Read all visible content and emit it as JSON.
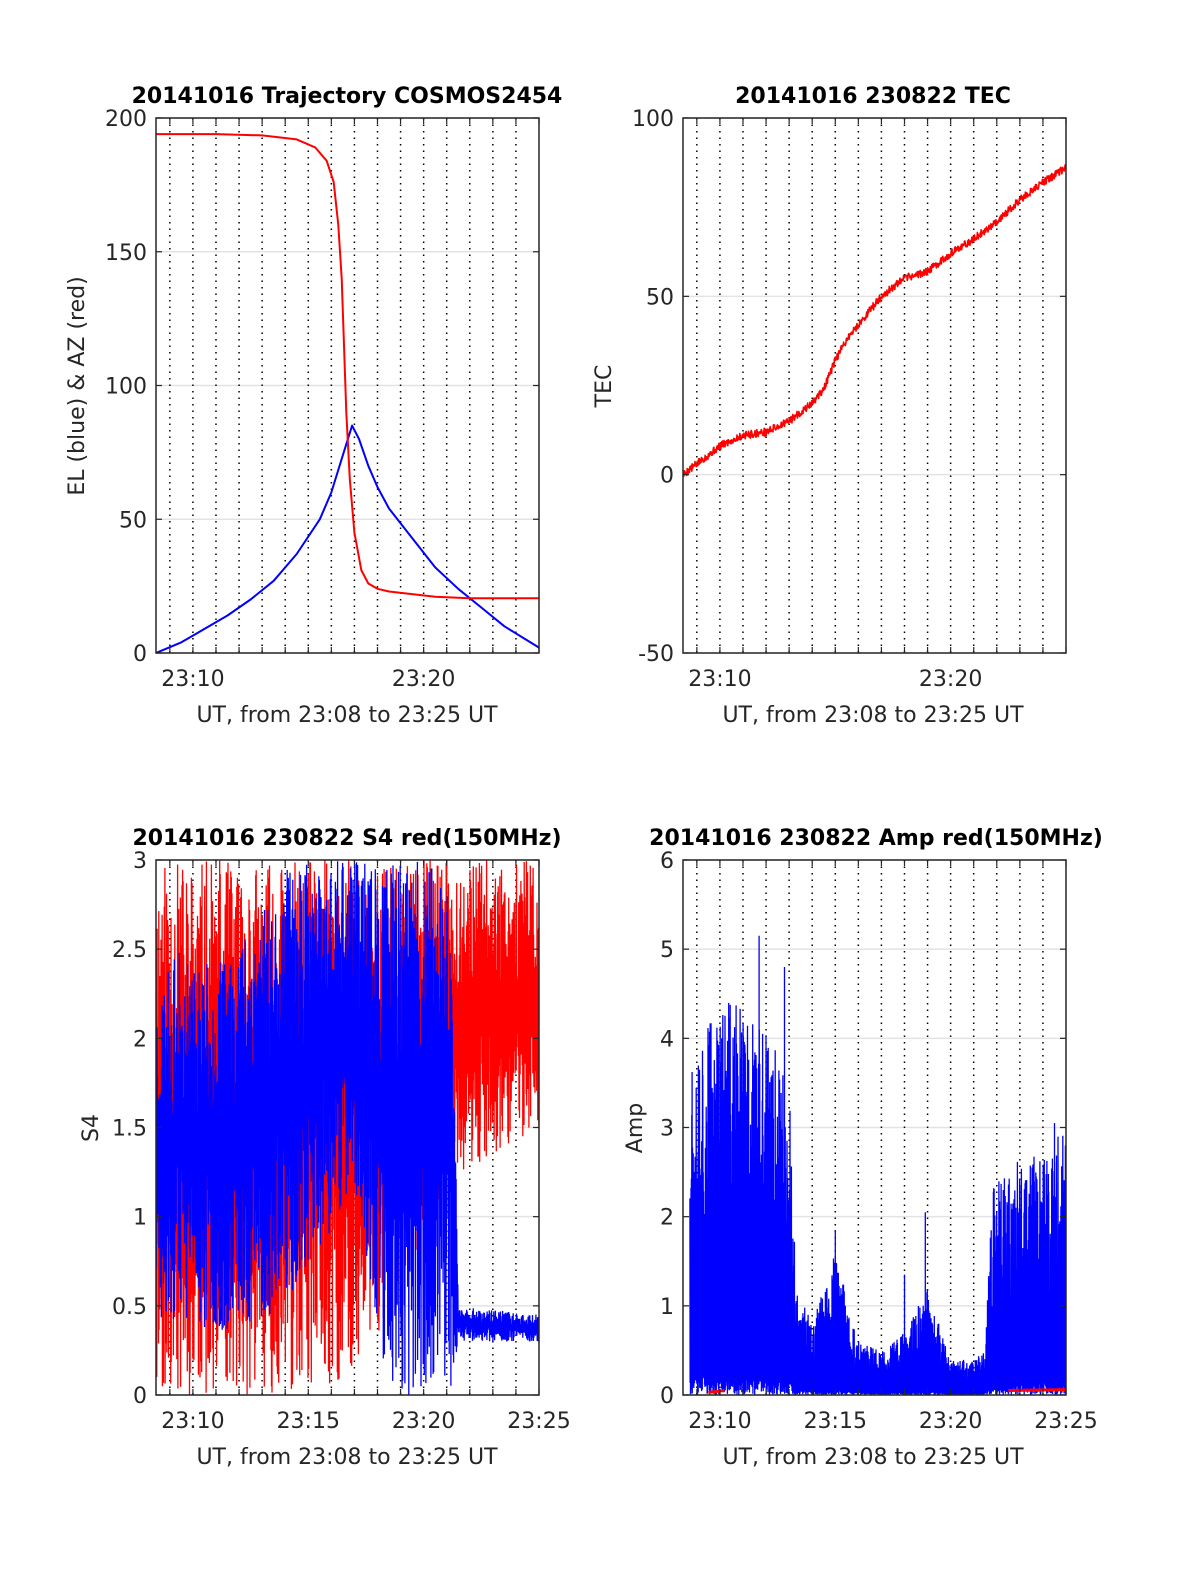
{
  "colors": {
    "el_blue": "#0000ff",
    "az_red": "#ff0000",
    "tec_red": "#ff0000",
    "grid": "#e3e3e3",
    "axis": "#262626"
  },
  "chart_data": [
    {
      "type": "line",
      "title": "20141016 Trajectory COSMOS2454",
      "xlabel": "UT, from 23:08 to 23:25 UT",
      "ylabel": "EL (blue) & AZ (red)",
      "xlim_minutes": [
        8.4,
        25
      ],
      "ylim": [
        0,
        200
      ],
      "xticks": [
        {
          "v": 10,
          "label": "23:10"
        },
        {
          "v": 20,
          "label": "23:20"
        }
      ],
      "yticks": [
        {
          "v": 0,
          "label": "0"
        },
        {
          "v": 50,
          "label": "50"
        },
        {
          "v": 100,
          "label": "100"
        },
        {
          "v": 150,
          "label": "150"
        },
        {
          "v": 200,
          "label": "200"
        }
      ],
      "vgrid_dotted_minutes": [
        9,
        10,
        11,
        12,
        13,
        14,
        15,
        16,
        17,
        18,
        19,
        20,
        21,
        22,
        23,
        24,
        25
      ],
      "series": [
        {
          "color": "#0000ff",
          "x": [
            8.4,
            9.5,
            10.5,
            11.5,
            12.5,
            13.5,
            14.5,
            15.5,
            16.0,
            16.5,
            16.9,
            17.2,
            17.6,
            18.0,
            18.5,
            19.5,
            20.5,
            21.5,
            22.5,
            23.5,
            25.0
          ],
          "y": [
            0,
            4,
            9,
            14,
            20,
            27,
            37,
            50,
            60,
            74,
            85,
            80,
            70,
            62,
            54,
            43,
            32,
            24,
            17,
            10,
            2
          ]
        },
        {
          "color": "#ff0000",
          "x": [
            8.4,
            11,
            13,
            14.5,
            15.3,
            15.8,
            16.1,
            16.3,
            16.45,
            16.55,
            16.65,
            16.8,
            17.0,
            17.3,
            17.6,
            18.0,
            18.5,
            19.5,
            20.5,
            22,
            25
          ],
          "y": [
            194,
            194,
            193.5,
            192,
            189,
            184,
            176,
            160,
            140,
            115,
            90,
            65,
            45,
            31,
            26,
            24,
            23,
            22,
            21,
            20.5,
            20.5
          ]
        }
      ]
    },
    {
      "type": "line",
      "title": "20141016 230822 TEC",
      "xlabel": "UT, from 23:08 to 23:25 UT",
      "ylabel": "TEC",
      "xlim_minutes": [
        8.4,
        25
      ],
      "ylim": [
        -50,
        100
      ],
      "xticks": [
        {
          "v": 10,
          "label": "23:10"
        },
        {
          "v": 20,
          "label": "23:20"
        }
      ],
      "yticks": [
        {
          "v": -50,
          "label": "-50"
        },
        {
          "v": 0,
          "label": "0"
        },
        {
          "v": 50,
          "label": "50"
        },
        {
          "v": 100,
          "label": "100"
        }
      ],
      "vgrid_dotted_minutes": [
        9,
        10,
        11,
        12,
        13,
        14,
        15,
        16,
        17,
        18,
        19,
        20,
        21,
        22,
        23,
        24,
        25
      ],
      "series": [
        {
          "color": "#ff0000",
          "x": [
            8.4,
            9.0,
            10.0,
            11.0,
            12.0,
            13.0,
            14.0,
            14.5,
            15.0,
            15.5,
            16.0,
            17.0,
            18.0,
            19.0,
            20.0,
            21.0,
            22.0,
            23.0,
            24.0,
            25.0
          ],
          "y": [
            0,
            3,
            8,
            11,
            12,
            15,
            20,
            24,
            32,
            38,
            42,
            50,
            55,
            57,
            62,
            66,
            71,
            77,
            82,
            86
          ]
        }
      ]
    },
    {
      "type": "line",
      "title": "20141016 230822 S4 red(150MHz)",
      "xlabel": "UT, from 23:08 to 23:25 UT",
      "ylabel": "S4",
      "xlim_minutes": [
        8.4,
        25
      ],
      "ylim": [
        0,
        3
      ],
      "xticks": [
        {
          "v": 10,
          "label": "23:10"
        },
        {
          "v": 15,
          "label": "23:15"
        },
        {
          "v": 20,
          "label": "23:20"
        },
        {
          "v": 25,
          "label": "23:25"
        }
      ],
      "yticks": [
        {
          "v": 0,
          "label": "0"
        },
        {
          "v": 0.5,
          "label": "0.5"
        },
        {
          "v": 1,
          "label": "1"
        },
        {
          "v": 1.5,
          "label": "1.5"
        },
        {
          "v": 2,
          "label": "2"
        },
        {
          "v": 2.5,
          "label": "2.5"
        },
        {
          "v": 3,
          "label": "3"
        }
      ],
      "vgrid_dotted_minutes": [
        9,
        10,
        11,
        12,
        13,
        14,
        15,
        16,
        17,
        18,
        19,
        20,
        21,
        22,
        23,
        24,
        25
      ],
      "series": [
        {
          "color": "#ff0000",
          "noise": {
            "from": 8.4,
            "to": 25,
            "low": 0,
            "high": 3,
            "seed": 11
          },
          "envelope_x": [
            8.4,
            13,
            17,
            21,
            25
          ],
          "envelope_low": [
            0,
            0,
            0,
            1.2,
            1.5
          ],
          "envelope_high": [
            3,
            3,
            3,
            3,
            3
          ]
        },
        {
          "color": "#0000ff",
          "noise": {
            "from": 8.4,
            "to": 25,
            "seed": 23
          },
          "envelope_x": [
            8.4,
            9.5,
            11,
            13,
            14.5,
            15.5,
            17,
            18.5,
            20,
            21.2,
            21.5,
            25
          ],
          "envelope_low": [
            0.4,
            0.4,
            0.35,
            0.4,
            0.6,
            0.8,
            1.2,
            0.0,
            0.0,
            0.0,
            0.3,
            0.3
          ],
          "envelope_high": [
            2.3,
            2.5,
            2.4,
            2.8,
            3.0,
            3.0,
            3.0,
            3.0,
            3.0,
            3.0,
            0.5,
            0.45
          ]
        }
      ]
    },
    {
      "type": "line",
      "title": "20141016 230822 Amp red(150MHz)",
      "xlabel": "UT, from 23:08 to 23:25 UT",
      "ylabel": "Amp",
      "xlim_minutes": [
        8.4,
        25
      ],
      "ylim": [
        0,
        6
      ],
      "xticks": [
        {
          "v": 10,
          "label": "23:10"
        },
        {
          "v": 15,
          "label": "23:15"
        },
        {
          "v": 20,
          "label": "23:20"
        },
        {
          "v": 25,
          "label": "23:25"
        }
      ],
      "yticks": [
        {
          "v": 0,
          "label": "0"
        },
        {
          "v": 1,
          "label": "1"
        },
        {
          "v": 2,
          "label": "2"
        },
        {
          "v": 3,
          "label": "3"
        },
        {
          "v": 4,
          "label": "4"
        },
        {
          "v": 5,
          "label": "5"
        },
        {
          "v": 6,
          "label": "6"
        }
      ],
      "vgrid_dotted_minutes": [
        9,
        10,
        11,
        12,
        13,
        14,
        15,
        16,
        17,
        18,
        19,
        20,
        21,
        22,
        23,
        24,
        25
      ],
      "series": [
        {
          "color": "#0000ff",
          "noise": {
            "from": 8.7,
            "to": 25,
            "seed": 37
          },
          "envelope_x": [
            8.7,
            9.5,
            10.5,
            11.5,
            12.5,
            13.0,
            13.3,
            14.0,
            15.0,
            16.0,
            17.0,
            18.0,
            19.0,
            20.0,
            21.0,
            21.5,
            21.8,
            23.0,
            25.0
          ],
          "envelope_high": [
            4.3,
            4.3,
            4.5,
            4.2,
            4.0,
            3.5,
            1.2,
            0.8,
            1.6,
            0.6,
            0.5,
            0.7,
            1.2,
            0.4,
            0.4,
            0.5,
            2.3,
            2.7,
            3.0
          ],
          "spikes": [
            {
              "x": 11.7,
              "y": 5.15
            },
            {
              "x": 12.8,
              "y": 4.8
            },
            {
              "x": 15.0,
              "y": 1.85
            },
            {
              "x": 18.0,
              "y": 1.35
            },
            {
              "x": 18.9,
              "y": 2.05
            },
            {
              "x": 24.5,
              "y": 3.05
            }
          ]
        },
        {
          "color": "#ff0000",
          "segments": [
            {
              "x": [
                9.5,
                10.2
              ],
              "y": [
                0.03,
                0.05
              ]
            },
            {
              "x": [
                22.5,
                25.0
              ],
              "y": [
                0.05,
                0.06
              ]
            }
          ]
        }
      ]
    }
  ]
}
